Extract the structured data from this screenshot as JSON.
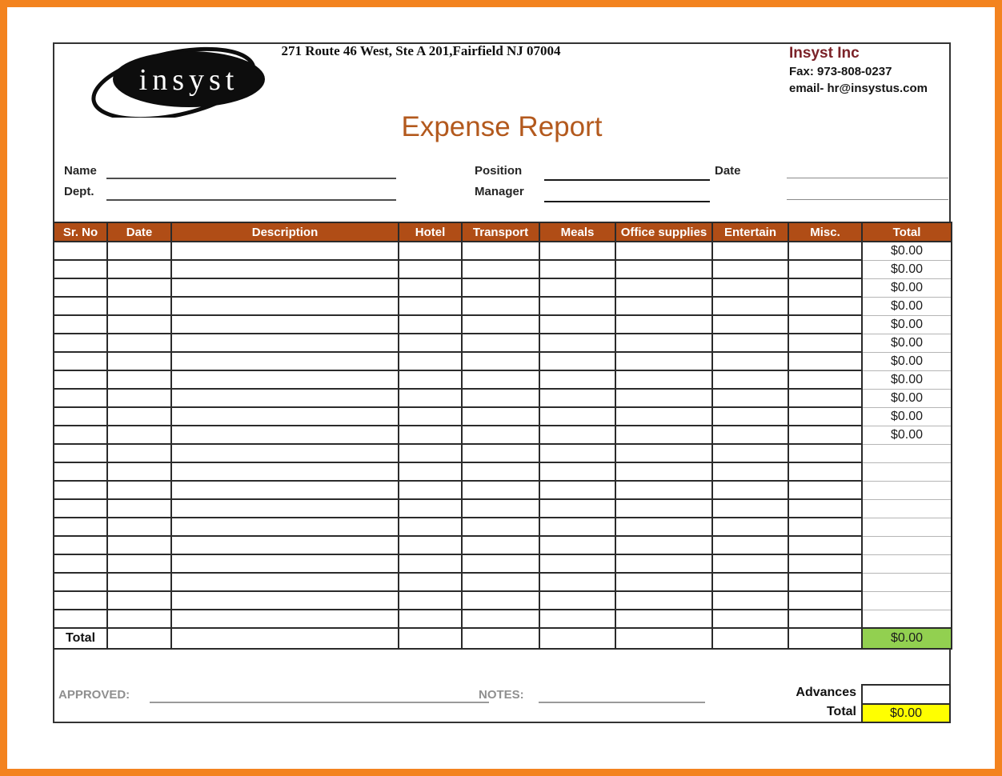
{
  "page": {
    "address": "271 Route 46 West, Ste A 201,Fairfield NJ 07004",
    "title": "Expense Report"
  },
  "logo": {
    "text": "insyst"
  },
  "company": {
    "name": "Insyst Inc",
    "fax": "Fax: 973-808-0237",
    "email": "email- hr@insystus.com"
  },
  "form": {
    "name_label": "Name",
    "dept_label": "Dept.",
    "position_label": "Position",
    "manager_label": "Manager",
    "date_label": "Date"
  },
  "table": {
    "columns": [
      "Sr. No",
      "Date",
      "Description",
      "Hotel",
      "Transport",
      "Meals",
      "Office supplies",
      "Entertain",
      "Misc.",
      "Total"
    ],
    "row_totals": [
      "$0.00",
      "$0.00",
      "$0.00",
      "$0.00",
      "$0.00",
      "$0.00",
      "$0.00",
      "$0.00",
      "$0.00",
      "$0.00",
      "$0.00",
      "",
      "",
      "",
      "",
      "",
      "",
      "",
      "",
      "",
      ""
    ],
    "total_row": {
      "label": "Total",
      "value": "$0.00"
    }
  },
  "footer": {
    "approved_label": "APPROVED:",
    "notes_label": "NOTES:",
    "advances_label": "Advances",
    "total_label": "Total",
    "total_value": "$0.00"
  },
  "colors": {
    "frame": "#f3831f",
    "header-bg": "#b04d16",
    "title": "#b3591d",
    "maroon": "#7b2228",
    "green": "#92d050",
    "yellow": "#ffff00"
  }
}
